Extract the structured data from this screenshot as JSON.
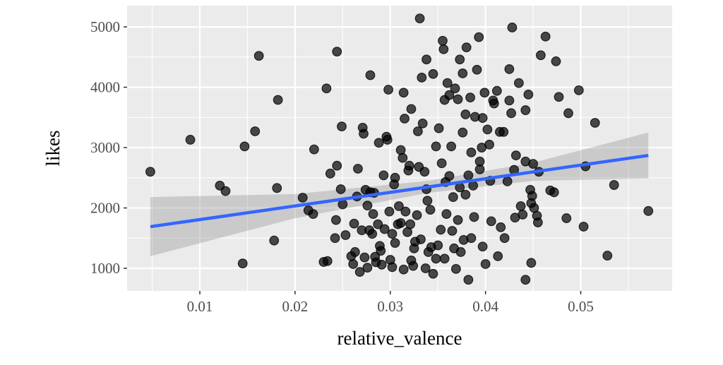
{
  "chart_data": {
    "type": "scatter",
    "xlabel": "relative_valence",
    "ylabel": "likes",
    "xlim": [
      0.00236,
      0.0596
    ],
    "ylim": [
      626,
      5352
    ],
    "x_ticks": [
      0.01,
      0.02,
      0.03,
      0.04,
      0.05
    ],
    "x_tick_labels": [
      "0.01",
      "0.02",
      "0.03",
      "0.04",
      "0.05"
    ],
    "y_ticks": [
      1000,
      2000,
      3000,
      4000,
      5000
    ],
    "y_tick_labels": [
      "1000",
      "2000",
      "3000",
      "4000",
      "5000"
    ],
    "grid": true,
    "background": "#ebebeb",
    "point_color": "#000000",
    "line_color": "#3366ff",
    "band_color": "#999999",
    "points": [
      [
        0.0048,
        2600
      ],
      [
        0.009,
        3130
      ],
      [
        0.0121,
        2370
      ],
      [
        0.0127,
        2280
      ],
      [
        0.0145,
        1080
      ],
      [
        0.0147,
        3020
      ],
      [
        0.0158,
        3270
      ],
      [
        0.0162,
        4520
      ],
      [
        0.0178,
        1460
      ],
      [
        0.0182,
        3790
      ],
      [
        0.0181,
        2330
      ],
      [
        0.0208,
        2170
      ],
      [
        0.0214,
        1960
      ],
      [
        0.0219,
        1900
      ],
      [
        0.022,
        2970
      ],
      [
        0.023,
        1105
      ],
      [
        0.0234,
        1120
      ],
      [
        0.0233,
        3980
      ],
      [
        0.0237,
        2570
      ],
      [
        0.0244,
        4590
      ],
      [
        0.0244,
        2700
      ],
      [
        0.0248,
        2310
      ],
      [
        0.0249,
        3350
      ],
      [
        0.0242,
        1500
      ],
      [
        0.0243,
        1800
      ],
      [
        0.025,
        2060
      ],
      [
        0.0253,
        1550
      ],
      [
        0.0259,
        1200
      ],
      [
        0.0261,
        1070
      ],
      [
        0.0262,
        1740
      ],
      [
        0.0263,
        1270
      ],
      [
        0.0265,
        2190
      ],
      [
        0.0266,
        2650
      ],
      [
        0.027,
        1630
      ],
      [
        0.0271,
        3330
      ],
      [
        0.0272,
        3230
      ],
      [
        0.0268,
        940
      ],
      [
        0.0273,
        1180
      ],
      [
        0.0274,
        2300
      ],
      [
        0.0276,
        1010
      ],
      [
        0.0276,
        2040
      ],
      [
        0.0278,
        1630
      ],
      [
        0.0279,
        4200
      ],
      [
        0.0279,
        2260
      ],
      [
        0.0281,
        1570
      ],
      [
        0.0282,
        1900
      ],
      [
        0.0283,
        2250
      ],
      [
        0.0284,
        1190
      ],
      [
        0.0285,
        1100
      ],
      [
        0.0287,
        1730
      ],
      [
        0.0288,
        3080
      ],
      [
        0.0289,
        1370
      ],
      [
        0.029,
        1290
      ],
      [
        0.0291,
        1060
      ],
      [
        0.0293,
        2540
      ],
      [
        0.0294,
        1650
      ],
      [
        0.0296,
        3180
      ],
      [
        0.0297,
        3130
      ],
      [
        0.0298,
        3960
      ],
      [
        0.0299,
        1940
      ],
      [
        0.03,
        1140
      ],
      [
        0.0302,
        1020
      ],
      [
        0.0302,
        1570
      ],
      [
        0.0304,
        2390
      ],
      [
        0.0305,
        2500
      ],
      [
        0.0305,
        1420
      ],
      [
        0.0308,
        1730
      ],
      [
        0.0309,
        2030
      ],
      [
        0.0311,
        1750
      ],
      [
        0.0311,
        2960
      ],
      [
        0.0313,
        2830
      ],
      [
        0.0314,
        3910
      ],
      [
        0.0314,
        980
      ],
      [
        0.0315,
        3480
      ],
      [
        0.0316,
        1940
      ],
      [
        0.0318,
        1600
      ],
      [
        0.0319,
        2620
      ],
      [
        0.032,
        2700
      ],
      [
        0.0321,
        1730
      ],
      [
        0.0322,
        3640
      ],
      [
        0.0322,
        1130
      ],
      [
        0.0324,
        1040
      ],
      [
        0.0325,
        1330
      ],
      [
        0.0326,
        1440
      ],
      [
        0.0328,
        1880
      ],
      [
        0.0329,
        3270
      ],
      [
        0.033,
        2680
      ],
      [
        0.0331,
        5140
      ],
      [
        0.0332,
        1480
      ],
      [
        0.0333,
        4160
      ],
      [
        0.0334,
        3400
      ],
      [
        0.0336,
        2600
      ],
      [
        0.0337,
        1000
      ],
      [
        0.0338,
        2310
      ],
      [
        0.0338,
        4460
      ],
      [
        0.0339,
        2120
      ],
      [
        0.034,
        1270
      ],
      [
        0.0342,
        1970
      ],
      [
        0.0343,
        1350
      ],
      [
        0.0345,
        910
      ],
      [
        0.0345,
        4220
      ],
      [
        0.0348,
        3020
      ],
      [
        0.0348,
        1160
      ],
      [
        0.035,
        1380
      ],
      [
        0.0351,
        3320
      ],
      [
        0.0353,
        1640
      ],
      [
        0.0354,
        2740
      ],
      [
        0.0355,
        4770
      ],
      [
        0.0356,
        4630
      ],
      [
        0.0357,
        3790
      ],
      [
        0.0357,
        1160
      ],
      [
        0.0358,
        2430
      ],
      [
        0.0359,
        1900
      ],
      [
        0.036,
        4070
      ],
      [
        0.0362,
        3870
      ],
      [
        0.0362,
        2530
      ],
      [
        0.0364,
        3020
      ],
      [
        0.0365,
        1620
      ],
      [
        0.0366,
        2180
      ],
      [
        0.0367,
        1330
      ],
      [
        0.0368,
        3980
      ],
      [
        0.0369,
        990
      ],
      [
        0.0371,
        3800
      ],
      [
        0.0371,
        1800
      ],
      [
        0.0373,
        4460
      ],
      [
        0.0373,
        2340
      ],
      [
        0.0374,
        1270
      ],
      [
        0.0376,
        4230
      ],
      [
        0.0376,
        3250
      ],
      [
        0.0377,
        1470
      ],
      [
        0.0379,
        2220
      ],
      [
        0.0379,
        3550
      ],
      [
        0.038,
        4660
      ],
      [
        0.0382,
        2540
      ],
      [
        0.0382,
        810
      ],
      [
        0.0384,
        3830
      ],
      [
        0.0385,
        2920
      ],
      [
        0.0385,
        1500
      ],
      [
        0.0387,
        2370
      ],
      [
        0.0388,
        1850
      ],
      [
        0.0389,
        3510
      ],
      [
        0.0391,
        4290
      ],
      [
        0.0393,
        4830
      ],
      [
        0.0394,
        2640
      ],
      [
        0.0394,
        2770
      ],
      [
        0.0396,
        3000
      ],
      [
        0.0397,
        3490
      ],
      [
        0.0397,
        1360
      ],
      [
        0.0399,
        3910
      ],
      [
        0.04,
        1070
      ],
      [
        0.0402,
        3300
      ],
      [
        0.0404,
        3050
      ],
      [
        0.0405,
        2450
      ],
      [
        0.0406,
        1780
      ],
      [
        0.0408,
        3780
      ],
      [
        0.0409,
        3730
      ],
      [
        0.0412,
        3940
      ],
      [
        0.0413,
        1200
      ],
      [
        0.0415,
        3260
      ],
      [
        0.0416,
        1680
      ],
      [
        0.0419,
        3260
      ],
      [
        0.042,
        1500
      ],
      [
        0.0423,
        2440
      ],
      [
        0.0425,
        4300
      ],
      [
        0.0425,
        3780
      ],
      [
        0.0427,
        3570
      ],
      [
        0.0428,
        4990
      ],
      [
        0.043,
        2630
      ],
      [
        0.0431,
        1840
      ],
      [
        0.0432,
        2870
      ],
      [
        0.0435,
        4070
      ],
      [
        0.0437,
        2030
      ],
      [
        0.0439,
        1890
      ],
      [
        0.0442,
        3620
      ],
      [
        0.0442,
        2770
      ],
      [
        0.0442,
        810
      ],
      [
        0.0445,
        3880
      ],
      [
        0.0447,
        2300
      ],
      [
        0.0448,
        1090
      ],
      [
        0.0448,
        2080
      ],
      [
        0.0449,
        2200
      ],
      [
        0.045,
        2730
      ],
      [
        0.0451,
        2000
      ],
      [
        0.0454,
        1870
      ],
      [
        0.0455,
        1760
      ],
      [
        0.0456,
        2600
      ],
      [
        0.0458,
        4530
      ],
      [
        0.0463,
        4840
      ],
      [
        0.0468,
        2290
      ],
      [
        0.0472,
        2260
      ],
      [
        0.0474,
        4430
      ],
      [
        0.0477,
        3840
      ],
      [
        0.0485,
        1830
      ],
      [
        0.0487,
        3570
      ],
      [
        0.0498,
        3950
      ],
      [
        0.0503,
        1690
      ],
      [
        0.0505,
        2690
      ],
      [
        0.0515,
        3410
      ],
      [
        0.0528,
        1210
      ],
      [
        0.0535,
        2380
      ],
      [
        0.0571,
        1950
      ]
    ],
    "fit_line": {
      "x": [
        0.0048,
        0.0571
      ],
      "y": [
        1690,
        2870
      ]
    },
    "confidence_band": {
      "x": [
        0.0048,
        0.02,
        0.034,
        0.045,
        0.0571
      ],
      "lower": [
        1200,
        1830,
        2250,
        2450,
        2490
      ],
      "upper": [
        2180,
        2230,
        2450,
        2750,
        3250
      ]
    }
  }
}
